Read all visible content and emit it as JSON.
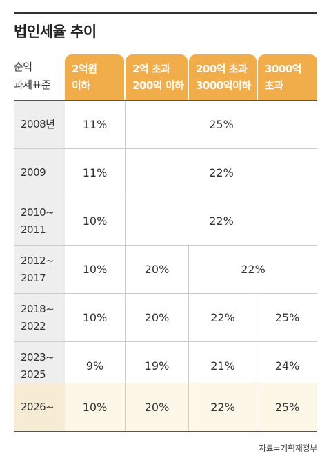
{
  "title": "법인세율 추이",
  "header": {
    "label_line1": "순익",
    "label_line2": "과세표준",
    "tiers": [
      {
        "line1": "2억원",
        "line2": "이하"
      },
      {
        "line1": "2억 초과",
        "line2": "200억 이하"
      },
      {
        "line1": "200억 초과",
        "line2": "3000억이하"
      },
      {
        "line1": "3000억",
        "line2": "초과"
      }
    ]
  },
  "rows": [
    {
      "year1": "2008년",
      "year2": "",
      "rates": [
        "11%",
        "25%"
      ]
    },
    {
      "year1": "2009",
      "year2": "",
      "rates": [
        "11%",
        "22%"
      ]
    },
    {
      "year1": "2010~",
      "year2": "2011",
      "rates": [
        "10%",
        "22%"
      ]
    },
    {
      "year1": "2012~",
      "year2": "2017",
      "rates": [
        "10%",
        "20%",
        "22%"
      ]
    },
    {
      "year1": "2018~",
      "year2": "2022",
      "rates": [
        "10%",
        "20%",
        "22%",
        "25%"
      ]
    },
    {
      "year1": "2023~",
      "year2": "2025",
      "rates": [
        "9%",
        "19%",
        "21%",
        "24%"
      ]
    },
    {
      "year1": "2026~",
      "year2": "",
      "rates": [
        "10%",
        "20%",
        "22%",
        "25%"
      ]
    }
  ],
  "source": "자료=기획재정부",
  "colors": {
    "accent": "#f2ad4b",
    "highlight_row": "#fdf7e8",
    "year_bg": "#eeeeee"
  }
}
